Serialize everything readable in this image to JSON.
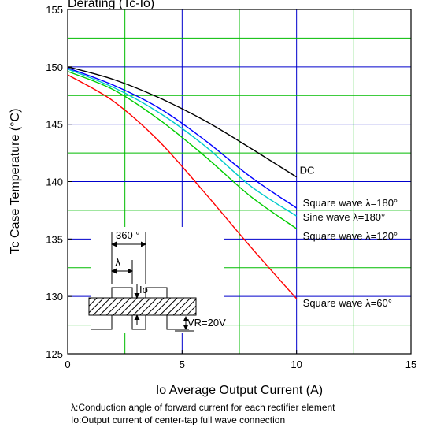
{
  "chart_data": {
    "type": "line",
    "title": "Derating (Tc-Io)",
    "title_detail": "(Tc-Io)",
    "xlabel": "Io   Average Output Current   (A)",
    "ylabel": "Tc    Case Temperature   (°C)",
    "xlim": [
      0,
      15
    ],
    "ylim": [
      125,
      155
    ],
    "x_ticks": [
      0,
      5,
      10,
      15
    ],
    "y_ticks": [
      125,
      130,
      135,
      140,
      145,
      150,
      155
    ],
    "grid": true,
    "x_major_grid_color": "#0000cc",
    "x_minor_grid_color": "#00bb00",
    "y_major_grid_color": "#0000cc",
    "y_minor_grid_color": "#00bb00",
    "series": [
      {
        "name": "DC",
        "color": "#000000",
        "x": [
          0,
          2,
          4,
          6,
          8,
          10
        ],
        "y": [
          150.0,
          148.9,
          147.3,
          145.3,
          142.9,
          140.4
        ]
      },
      {
        "name": "Square wave  λ=180°",
        "color": "#0000ff",
        "x": [
          0,
          2,
          4,
          6,
          8,
          10
        ],
        "y": [
          149.9,
          148.4,
          146.4,
          143.6,
          140.4,
          137.7
        ]
      },
      {
        "name": "Sine wave λ=180°",
        "color": "#00cccc",
        "x": [
          0,
          2,
          4,
          6,
          8,
          10
        ],
        "y": [
          149.8,
          148.2,
          146.0,
          143.1,
          139.6,
          137.0
        ]
      },
      {
        "name": "Square wave  λ=120°",
        "color": "#00cc00",
        "x": [
          0,
          2,
          4,
          6,
          8,
          10
        ],
        "y": [
          149.6,
          148.0,
          145.4,
          142.2,
          138.7,
          135.9
        ]
      },
      {
        "name": "Square wave  λ=60°",
        "color": "#ff0000",
        "x": [
          0,
          2,
          4,
          6,
          8,
          10
        ],
        "y": [
          149.3,
          147.0,
          143.5,
          139.0,
          134.3,
          129.8
        ]
      }
    ],
    "inset": {
      "period_label": "360 °",
      "lambda_label": "λ",
      "io_label": "Io",
      "vr_label": "VR=20V"
    }
  },
  "notes": [
    "λ:Conduction angle of forward current for each rectifier element",
    "Io:Output current of center-tap full wave connection"
  ]
}
